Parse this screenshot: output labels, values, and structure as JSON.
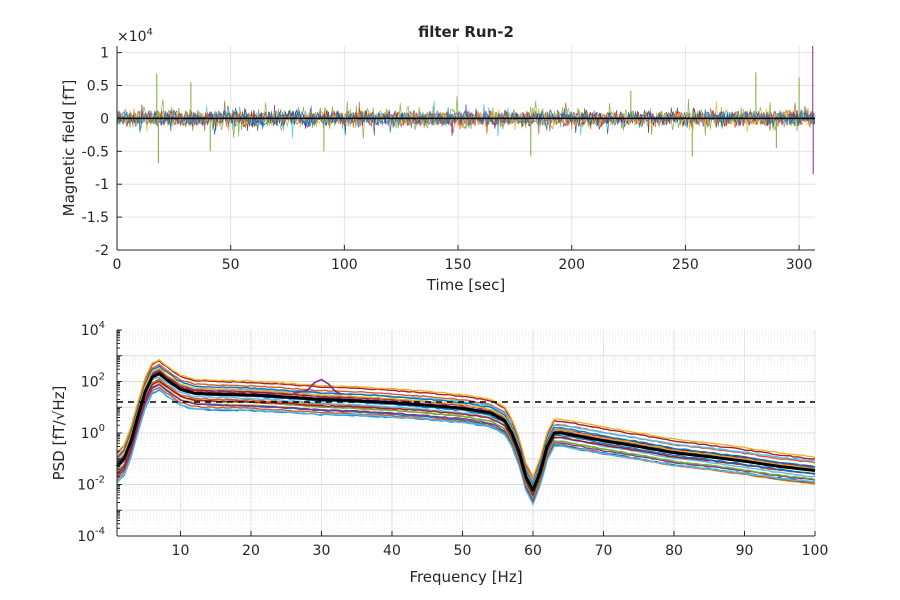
{
  "title": "filter Run-2",
  "chart_data": [
    {
      "type": "line",
      "xlabel": "Time [sec]",
      "ylabel": "Magnetic field [fT]",
      "exponent_label": "×10",
      "exponent_power": "4",
      "xlim": [
        0,
        307
      ],
      "ylim": [
        -2,
        1.1
      ],
      "y_multiplier": 10000,
      "xticks": [
        "0",
        "50",
        "100",
        "150",
        "200",
        "250",
        "300"
      ],
      "xtick_values": [
        0,
        50,
        100,
        150,
        200,
        250,
        300
      ],
      "yticks": [
        "-2",
        "-1.5",
        "-1",
        "-0.5",
        "0",
        "0.5",
        "1"
      ],
      "ytick_values": [
        -2,
        -1.5,
        -1,
        -0.5,
        0,
        0.5,
        1
      ],
      "grid": true,
      "series_colors": [
        "#77ac30",
        "#a2142f",
        "#7e2f8e",
        "#4dbeee",
        "#d95319",
        "#edb120",
        "#0072bd"
      ],
      "mean_color": "#000000",
      "typical_amplitude": 0.15,
      "spikes": [
        {
          "t": 17.5,
          "v": 0.68,
          "color": "#77ac30"
        },
        {
          "t": 18.2,
          "v": -0.68,
          "color": "#77ac30"
        },
        {
          "t": 32.5,
          "v": 0.55,
          "color": "#77ac30"
        },
        {
          "t": 41.0,
          "v": -0.5,
          "color": "#77ac30"
        },
        {
          "t": 91.0,
          "v": -0.5,
          "color": "#77ac30"
        },
        {
          "t": 182.0,
          "v": -0.58,
          "color": "#77ac30"
        },
        {
          "t": 226.0,
          "v": 0.42,
          "color": "#77ac30"
        },
        {
          "t": 253.0,
          "v": -0.58,
          "color": "#77ac30"
        },
        {
          "t": 281.0,
          "v": 0.7,
          "color": "#77ac30"
        },
        {
          "t": 290.0,
          "v": -0.45,
          "color": "#77ac30"
        },
        {
          "t": 300.0,
          "v": 0.62,
          "color": "#77ac30"
        },
        {
          "t": 306.0,
          "v": 1.1,
          "color": "#7e2f8e"
        },
        {
          "t": 306.2,
          "v": -0.85,
          "color": "#7e2f8e"
        }
      ]
    },
    {
      "type": "line",
      "xlabel": "Frequency [Hz]",
      "ylabel": "PSD [fT/√Hz]",
      "y_scale": "log",
      "xlim": [
        1,
        100
      ],
      "ylim": [
        0.0001,
        10000
      ],
      "xticks": [
        "10",
        "20",
        "30",
        "40",
        "50",
        "60",
        "70",
        "80",
        "90",
        "100"
      ],
      "xtick_values": [
        10,
        20,
        30,
        40,
        50,
        60,
        70,
        80,
        90,
        100
      ],
      "ytick_values": [
        0.0001,
        0.01,
        1,
        100,
        10000
      ],
      "ytick_exponents": [
        "-4",
        "-2",
        "0",
        "2",
        "4"
      ],
      "ytick_base": "10",
      "grid": true,
      "mean_series": {
        "color": "#000000",
        "x": [
          1,
          2,
          3,
          4,
          5,
          6,
          7,
          8,
          10,
          12,
          15,
          20,
          25,
          30,
          35,
          40,
          45,
          50,
          54,
          56,
          57,
          58,
          59,
          60,
          61,
          62,
          63,
          64,
          65,
          70,
          75,
          80,
          85,
          90,
          95,
          100
        ],
        "y": [
          0.05,
          0.1,
          0.5,
          5,
          40,
          150,
          200,
          120,
          50,
          35,
          32,
          30,
          25,
          20,
          18,
          15,
          12,
          9,
          6,
          3,
          1,
          0.2,
          0.02,
          0.006,
          0.03,
          0.3,
          1,
          1,
          0.9,
          0.5,
          0.3,
          0.17,
          0.12,
          0.08,
          0.05,
          0.035
        ]
      },
      "threshold": {
        "y": 16,
        "color": "#000000",
        "style": "dashed"
      },
      "channel_spread_decades": 1.2,
      "channel_count": 22,
      "channel_colors": [
        "#0072bd",
        "#d95319",
        "#edb120",
        "#7e2f8e",
        "#77ac30",
        "#4dbeee",
        "#a2142f"
      ],
      "bump_channel": {
        "color": "#7e2f8e",
        "x": [
          26,
          28,
          29,
          30,
          31,
          32,
          33
        ],
        "y": [
          35,
          45,
          90,
          120,
          80,
          40,
          32
        ]
      }
    }
  ]
}
